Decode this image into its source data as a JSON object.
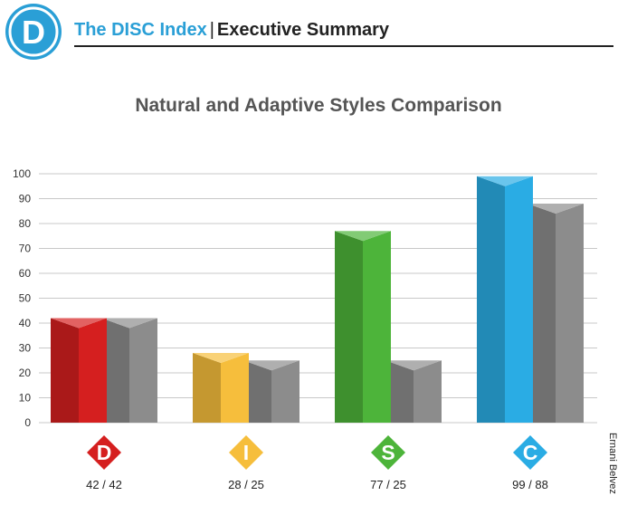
{
  "header": {
    "logo_letter": "D",
    "brand": "The DISC Index",
    "separator": "|",
    "section": "Executive Summary"
  },
  "side_credit": "Ernani Belvez",
  "colors": {
    "brand_blue": "#2a9fd6",
    "D": "#d51f1f",
    "I": "#f6be3c",
    "S": "#4db43a",
    "C": "#2aace4",
    "adaptive": "#8c8c8c"
  },
  "chart_data": {
    "type": "bar",
    "title": "Natural and Adaptive Styles Comparison",
    "categories": [
      "D",
      "I",
      "S",
      "C"
    ],
    "series": [
      {
        "values": [
          42,
          28,
          77,
          99
        ]
      },
      {
        "values": [
          42,
          25,
          25,
          88
        ]
      }
    ],
    "value_labels": [
      "42 / 42",
      "28 / 25",
      "77 / 25",
      "99 / 88"
    ],
    "ylim": [
      0,
      100
    ],
    "yticks": [
      0,
      10,
      20,
      30,
      40,
      50,
      60,
      70,
      80,
      90,
      100
    ],
    "grid": true,
    "style": "3d-prism"
  }
}
